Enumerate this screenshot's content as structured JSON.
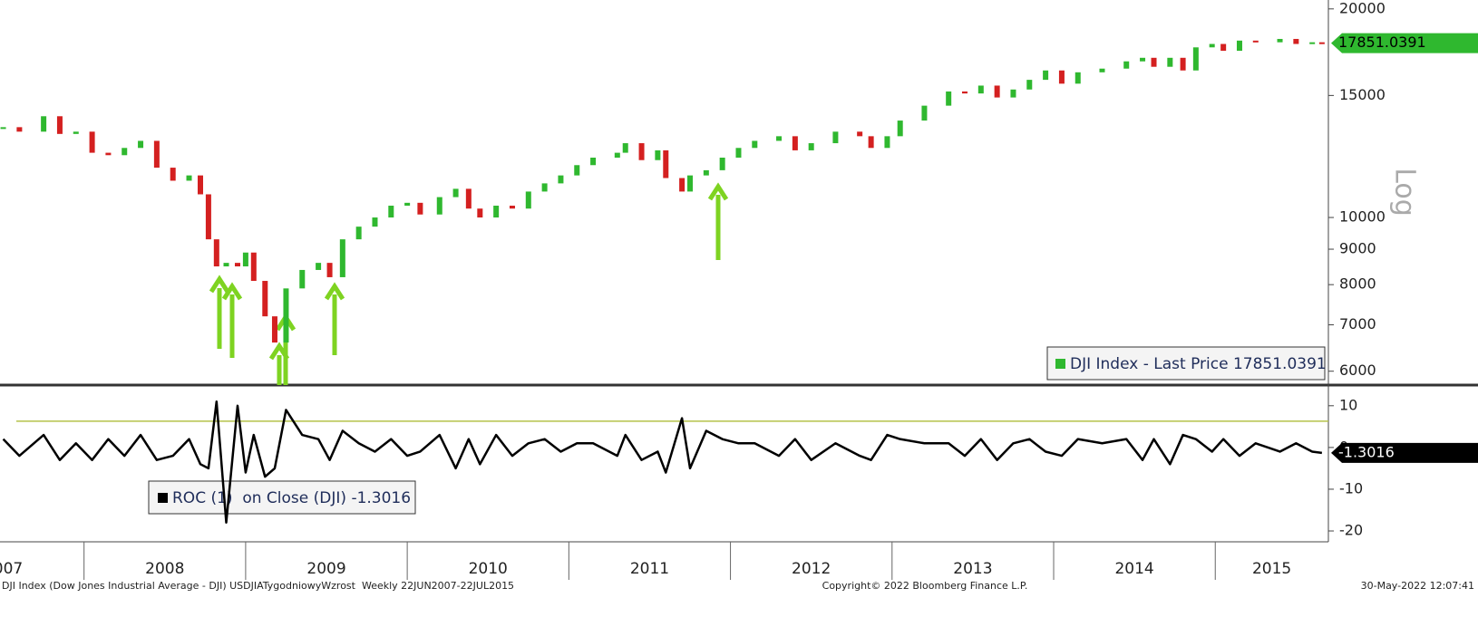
{
  "chart_data": [
    {
      "type": "candle-line",
      "log": true,
      "scale_label": "Log",
      "x": [
        2007.5,
        2007.6,
        2007.75,
        2007.85,
        2007.95,
        2008.05,
        2008.15,
        2008.25,
        2008.35,
        2008.45,
        2008.55,
        2008.65,
        2008.72,
        2008.77,
        2008.82,
        2008.88,
        2008.95,
        2009.0,
        2009.05,
        2009.12,
        2009.18,
        2009.25,
        2009.35,
        2009.45,
        2009.52,
        2009.6,
        2009.7,
        2009.8,
        2009.9,
        2010.0,
        2010.08,
        2010.2,
        2010.3,
        2010.38,
        2010.45,
        2010.55,
        2010.65,
        2010.75,
        2010.85,
        2010.95,
        2011.05,
        2011.15,
        2011.3,
        2011.35,
        2011.45,
        2011.55,
        2011.6,
        2011.7,
        2011.75,
        2011.85,
        2011.95,
        2012.05,
        2012.15,
        2012.3,
        2012.4,
        2012.5,
        2012.65,
        2012.8,
        2012.87,
        2012.97,
        2013.05,
        2013.2,
        2013.35,
        2013.45,
        2013.55,
        2013.65,
        2013.75,
        2013.85,
        2013.95,
        2014.05,
        2014.15,
        2014.3,
        2014.45,
        2014.55,
        2014.62,
        2014.72,
        2014.8,
        2014.88,
        2014.98,
        2015.05,
        2015.15,
        2015.25,
        2015.4,
        2015.5,
        2015.6,
        2015.66
      ],
      "series": [
        {
          "name": "DJI Index - Last Price",
          "color": "#2fb82f",
          "down_color": "#d42020",
          "values": [
            13500,
            13300,
            14000,
            13200,
            13300,
            12400,
            12300,
            12600,
            12900,
            11800,
            11300,
            11500,
            10800,
            9300,
            8500,
            8600,
            8500,
            8900,
            8100,
            7200,
            6600,
            7900,
            8400,
            8600,
            8200,
            9300,
            9700,
            10000,
            10400,
            10500,
            10100,
            10700,
            11000,
            10300,
            10000,
            10400,
            10300,
            10900,
            11200,
            11500,
            11900,
            12200,
            12400,
            12800,
            12100,
            12500,
            11400,
            10900,
            11500,
            11700,
            12200,
            12600,
            12900,
            13100,
            12500,
            12800,
            13300,
            13100,
            12600,
            13100,
            13800,
            14500,
            15200,
            15100,
            15500,
            14900,
            15300,
            15800,
            16300,
            15600,
            16200,
            16400,
            16800,
            17000,
            16500,
            17000,
            16300,
            17600,
            17800,
            17400,
            18000,
            17900,
            18100,
            17800,
            17900,
            17851.0391
          ]
        }
      ],
      "last_value": 17851.0391,
      "xlim": [
        2007.48,
        2015.7
      ],
      "ylim": [
        5730,
        20600
      ],
      "yticks": [
        20000,
        15000,
        10000,
        9000,
        8000,
        7000,
        6000
      ]
    },
    {
      "type": "line",
      "x": [
        2007.5,
        2007.6,
        2007.75,
        2007.85,
        2007.95,
        2008.05,
        2008.15,
        2008.25,
        2008.35,
        2008.45,
        2008.55,
        2008.65,
        2008.72,
        2008.77,
        2008.82,
        2008.88,
        2008.95,
        2009.0,
        2009.05,
        2009.12,
        2009.18,
        2009.25,
        2009.35,
        2009.45,
        2009.52,
        2009.6,
        2009.7,
        2009.8,
        2009.9,
        2010.0,
        2010.08,
        2010.2,
        2010.3,
        2010.38,
        2010.45,
        2010.55,
        2010.65,
        2010.75,
        2010.85,
        2010.95,
        2011.05,
        2011.15,
        2011.3,
        2011.35,
        2011.45,
        2011.55,
        2011.6,
        2011.7,
        2011.75,
        2011.85,
        2011.95,
        2012.05,
        2012.15,
        2012.3,
        2012.4,
        2012.5,
        2012.65,
        2012.8,
        2012.87,
        2012.97,
        2013.05,
        2013.2,
        2013.35,
        2013.45,
        2013.55,
        2013.65,
        2013.75,
        2013.85,
        2013.95,
        2014.05,
        2014.15,
        2014.3,
        2014.45,
        2014.55,
        2014.62,
        2014.72,
        2014.8,
        2014.88,
        2014.98,
        2015.05,
        2015.15,
        2015.25,
        2015.4,
        2015.5,
        2015.6,
        2015.66
      ],
      "series": [
        {
          "name": "ROC (1)  on Close (DJI)",
          "color": "#000000",
          "values": [
            2,
            -2,
            3,
            -3,
            1,
            -3,
            2,
            -2,
            3,
            -3,
            -2,
            2,
            -4,
            -5,
            11,
            -18,
            10,
            -6,
            3,
            -7,
            -5,
            9,
            3,
            2,
            -3,
            4,
            1,
            -1,
            2,
            -2,
            -1,
            3,
            -5,
            2,
            -4,
            3,
            -2,
            1,
            2,
            -1,
            1,
            1,
            -2,
            3,
            -3,
            -1,
            -6,
            7,
            -5,
            4,
            2,
            1,
            1,
            -2,
            2,
            -3,
            1,
            -2,
            -3,
            3,
            2,
            1,
            1,
            -2,
            2,
            -3,
            1,
            2,
            -1,
            -2,
            2,
            1,
            2,
            -3,
            2,
            -4,
            3,
            2,
            -1,
            2,
            -2,
            1,
            -1,
            1,
            -1,
            -1.3016
          ]
        }
      ],
      "last_value": -1.3016,
      "ref_line": 6.3,
      "ref_color": "#b5c24a",
      "xlim": [
        2007.48,
        2015.7
      ],
      "ylim": [
        -22.6,
        14.3
      ],
      "yticks": [
        10,
        0,
        -10,
        -20
      ],
      "year_dividers": [
        2008,
        2009,
        2010,
        2011,
        2012,
        2013,
        2014,
        2015
      ],
      "xticks": [
        {
          "value": 2007.5,
          "label": "2007"
        },
        {
          "value": 2008.5,
          "label": "2008"
        },
        {
          "value": 2009.5,
          "label": "2009"
        },
        {
          "value": 2010.5,
          "label": "2010"
        },
        {
          "value": 2011.5,
          "label": "2011"
        },
        {
          "value": 2012.5,
          "label": "2012"
        },
        {
          "value": 2013.5,
          "label": "2013"
        },
        {
          "value": 2014.5,
          "label": "2014"
        },
        {
          "value": 2015.35,
          "label": "2015"
        }
      ]
    }
  ],
  "footer": {
    "left": "DJI Index (Dow Jones Industrial Average - DJI) USDJIATygodniowyWzrost  Weekly 22JUN2007-22JUL2015",
    "center": "Copyright© 2022 Bloomberg Finance L.P.",
    "right": "30-May-2022 12:07:41"
  }
}
